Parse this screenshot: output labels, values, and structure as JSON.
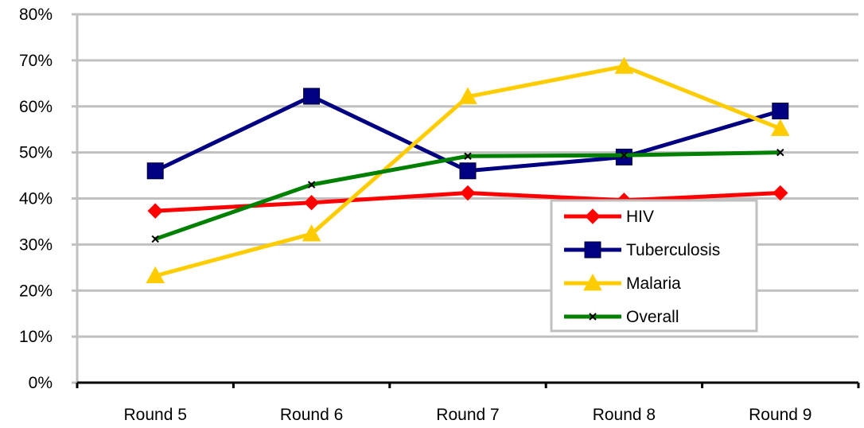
{
  "chart_data": {
    "type": "line",
    "title": "",
    "xlabel": "",
    "ylabel": "",
    "categories": [
      "Round 5",
      "Round 6",
      "Round 7",
      "Round 8",
      "Round 9"
    ],
    "ylim": [
      0,
      80
    ],
    "y_ticks": [
      0,
      10,
      20,
      30,
      40,
      50,
      60,
      70,
      80
    ],
    "y_tick_labels": [
      "0%",
      "10%",
      "20%",
      "30%",
      "40%",
      "50%",
      "60%",
      "70%",
      "80%"
    ],
    "grid": "horizontal",
    "legend_position": "inside-bottom-right",
    "series": [
      {
        "name": "HIV",
        "values": [
          37.3,
          39.1,
          41.2,
          39.6,
          41.2
        ],
        "color": "#ff0000",
        "marker": "diamond"
      },
      {
        "name": "Tuberculosis",
        "values": [
          46,
          62.2,
          46,
          49,
          59
        ],
        "color": "#000080",
        "marker": "square"
      },
      {
        "name": "Malaria",
        "values": [
          23.2,
          32.3,
          62.1,
          68.7,
          55.2
        ],
        "color": "#ffcc00",
        "marker": "triangle"
      },
      {
        "name": "Overall",
        "values": [
          31.2,
          43,
          49.2,
          49.4,
          50
        ],
        "color": "#008000",
        "marker": "x"
      }
    ]
  }
}
